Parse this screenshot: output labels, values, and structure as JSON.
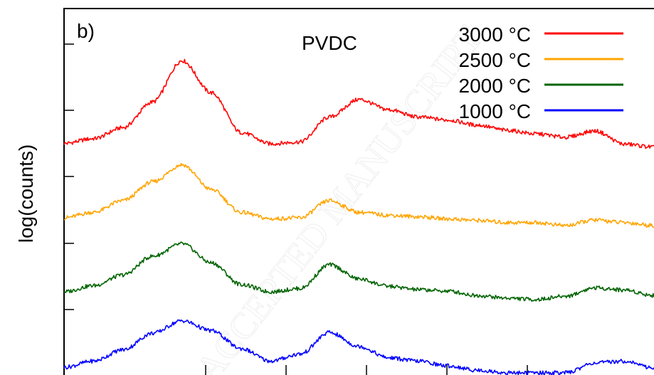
{
  "chart_data": {
    "type": "line",
    "panel_label": "b)",
    "title": "PVDC",
    "xlabel": "",
    "ylabel": "log(counts)",
    "x_range": [
      0,
      100
    ],
    "y_range": [
      0,
      100
    ],
    "y_scale": "log (offset traces)",
    "grid": false,
    "legend_position": "top-right",
    "watermark": "ACCEPTED MANUSCRIPT",
    "series": [
      {
        "name": "3000 °C",
        "color": "#ff0000",
        "x": [
          0,
          5,
          10,
          15,
          20,
          25,
          30,
          35,
          40,
          45,
          50,
          55,
          60,
          65,
          70,
          75,
          80,
          85,
          90,
          95,
          100
        ],
        "y": [
          63.2,
          64.5,
          67.5,
          74.5,
          85.8,
          77,
          66.2,
          63.1,
          63.6,
          70.4,
          75.2,
          72.4,
          70.4,
          69.6,
          68.2,
          66.8,
          65.8,
          64.9,
          66.6,
          63,
          62.2
        ]
      },
      {
        "name": "2500 °C",
        "color": "#ffa500",
        "x": [
          0,
          5,
          10,
          15,
          20,
          25,
          30,
          35,
          40,
          45,
          50,
          55,
          60,
          65,
          70,
          75,
          80,
          85,
          90,
          95,
          100
        ],
        "y": [
          42.9,
          44.4,
          47.6,
          52.7,
          57.4,
          50.6,
          44.4,
          42.6,
          42.9,
          47.6,
          44.4,
          43.6,
          43.2,
          42.6,
          42.2,
          41.6,
          41.6,
          40.8,
          42.3,
          41.6,
          40.8
        ]
      },
      {
        "name": "2000 °C",
        "color": "#006400",
        "x": [
          0,
          5,
          10,
          15,
          20,
          25,
          30,
          35,
          40,
          45,
          50,
          55,
          60,
          65,
          70,
          75,
          80,
          85,
          90,
          95,
          100
        ],
        "y": [
          22.7,
          24.4,
          27.3,
          32.4,
          35.8,
          30.6,
          24.7,
          22.7,
          23.6,
          30.1,
          26.2,
          24.2,
          23.3,
          22.9,
          21.7,
          21,
          20.6,
          21.5,
          23.8,
          23.2,
          21.7
        ]
      },
      {
        "name": "1000 °C",
        "color": "#0000ff",
        "x": [
          0,
          5,
          10,
          15,
          20,
          25,
          30,
          35,
          40,
          45,
          50,
          55,
          60,
          65,
          70,
          75,
          80,
          85,
          90,
          95,
          100
        ],
        "y": [
          2.1,
          3.8,
          6.9,
          11.4,
          14.8,
          12.1,
          7.2,
          3.8,
          5.7,
          11.6,
          7.8,
          4.7,
          3.8,
          2.5,
          1.3,
          0.6,
          0.6,
          0.6,
          3.3,
          3.8,
          1.9
        ]
      }
    ]
  }
}
